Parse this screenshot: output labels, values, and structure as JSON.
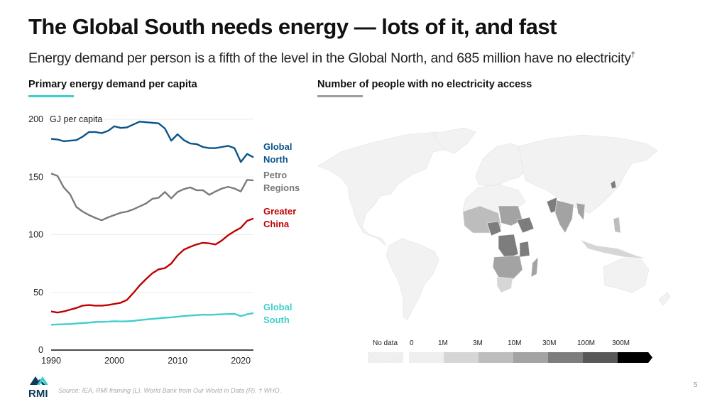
{
  "header": {
    "title": "The Global South needs energy — lots of it, and fast",
    "subtitle": "Energy demand per person is a fifth of the level in the Global North, and 685 million have no electricity",
    "subtitle_mark": "†"
  },
  "left_panel": {
    "title": "Primary energy demand per capita",
    "accent": "#3fcfcb"
  },
  "right_panel": {
    "title": "Number of people with no electricity access",
    "accent": "#9e9e9e"
  },
  "chart_data": [
    {
      "type": "line",
      "title": "Primary energy demand per capita",
      "ylabel": "GJ per capita",
      "xlabel": "",
      "x": [
        1990,
        1991,
        1992,
        1993,
        1994,
        1995,
        1996,
        1997,
        1998,
        1999,
        2000,
        2001,
        2002,
        2003,
        2004,
        2005,
        2006,
        2007,
        2008,
        2009,
        2010,
        2011,
        2012,
        2013,
        2014,
        2015,
        2016,
        2017,
        2018,
        2019,
        2020,
        2021,
        2022
      ],
      "xlim": [
        1990,
        2022
      ],
      "ylim": [
        0,
        200
      ],
      "xticks": [
        "1990",
        "2000",
        "2010",
        "2020"
      ],
      "yticks": [
        "0",
        "50",
        "100",
        "150",
        "200"
      ],
      "grid": true,
      "legend": "right-end labels",
      "series": [
        {
          "name": "Global North",
          "label_lines": [
            "Global",
            "North"
          ],
          "color": "#0b5489",
          "values": [
            183,
            182.5,
            181,
            181.5,
            182,
            185,
            189,
            189,
            188,
            190,
            194,
            192.5,
            193,
            195.5,
            198,
            197.5,
            197,
            196.5,
            192,
            181.5,
            187,
            182,
            179,
            178.5,
            176,
            175,
            175,
            176,
            177,
            175,
            163,
            170,
            167
          ]
        },
        {
          "name": "Petro Regions",
          "label_lines": [
            "Petro",
            "Regions"
          ],
          "color": "#7a7a7a",
          "values": [
            153,
            151,
            141,
            135,
            124,
            120,
            117,
            114.5,
            112.5,
            115,
            117,
            119,
            120,
            122,
            124.5,
            127,
            131,
            132,
            137,
            131.5,
            137,
            139.5,
            141,
            138.5,
            138.5,
            134.5,
            137.5,
            140,
            141.5,
            140,
            137.5,
            147.5,
            147
          ]
        },
        {
          "name": "Greater China",
          "label_lines": [
            "Greater",
            "China"
          ],
          "color": "#c00000",
          "values": [
            33.5,
            32.5,
            33.5,
            35,
            36.5,
            38.5,
            39,
            38.5,
            38.5,
            39,
            40,
            41,
            43.5,
            49.5,
            56,
            61.5,
            66.5,
            70,
            71,
            75,
            82,
            87,
            89.5,
            91.5,
            93,
            92.5,
            91.5,
            95,
            99.5,
            103,
            106,
            112,
            114
          ]
        },
        {
          "name": "Global South",
          "label_lines": [
            "Global",
            "South"
          ],
          "color": "#3fcfcb",
          "values": [
            22,
            22.2,
            22.4,
            22.6,
            23,
            23.4,
            23.8,
            24.3,
            24.5,
            24.7,
            25,
            24.8,
            24.9,
            25.3,
            26,
            26.5,
            27,
            27.5,
            28,
            28.4,
            29,
            29.5,
            30,
            30.3,
            30.7,
            30.5,
            30.8,
            31,
            31.2,
            31.4,
            29.5,
            31,
            32
          ]
        }
      ]
    },
    {
      "type": "heatmap",
      "title": "Number of people with no electricity access",
      "legend": {
        "no_data_label": "No data",
        "bins": [
          "0",
          "1M",
          "3M",
          "10M",
          "30M",
          "100M",
          "300M"
        ],
        "colors": [
          "#efefef",
          "#d6d6d6",
          "#bdbdbd",
          "#a3a3a3",
          "#7d7d7d",
          "#585858",
          "#000000"
        ]
      }
    }
  ],
  "footer": {
    "logo_text": "RMI",
    "source": "Source: IEA, RMI framing (L). World Bank from Our World in Data (R). † WHO.",
    "page_number": "5"
  }
}
